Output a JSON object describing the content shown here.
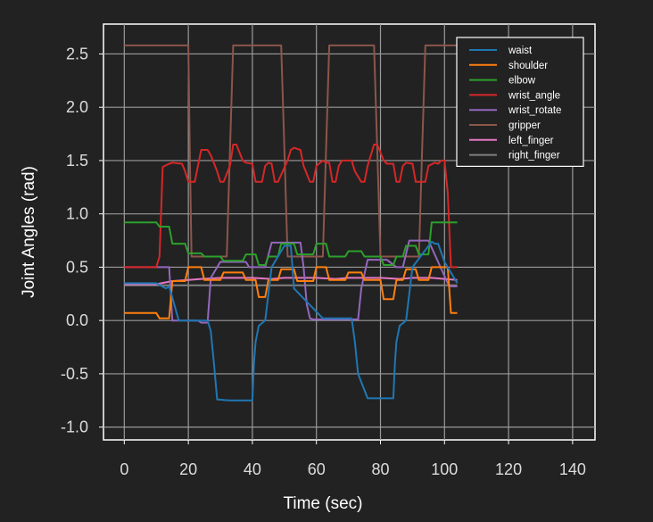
{
  "chart_data": {
    "type": "line",
    "title": "",
    "xlabel": "Time (sec)",
    "ylabel": "Joint Angles (rad)",
    "xlim": [
      -6.5,
      147
    ],
    "ylim": [
      -1.12,
      2.78
    ],
    "xticks": [
      0,
      20,
      40,
      60,
      80,
      100,
      120,
      140
    ],
    "yticks": [
      -1.0,
      -0.5,
      0.0,
      0.5,
      1.0,
      1.5,
      2.0,
      2.5
    ],
    "xtick_labels": [
      "0",
      "20",
      "40",
      "60",
      "80",
      "100",
      "120",
      "140"
    ],
    "ytick_labels": [
      "-1.0",
      "-0.5",
      "0.0",
      "0.5",
      "1.0",
      "1.5",
      "2.0",
      "2.5"
    ],
    "grid": true,
    "legend_position": "top-right",
    "series": [
      {
        "name": "waist",
        "color": "#1f77b4",
        "x": [
          0,
          10,
          13,
          14,
          17,
          26,
          27,
          28,
          29,
          33,
          40,
          40.5,
          41,
          42,
          44,
          46,
          50,
          51,
          52,
          53,
          62,
          63,
          64,
          66,
          71,
          72,
          73,
          76,
          84,
          84.5,
          85,
          86,
          88,
          90,
          96,
          97,
          98,
          100,
          104
        ],
        "y": [
          0.35,
          0.35,
          0.3,
          0.32,
          0.0,
          0.0,
          -0.1,
          -0.4,
          -0.74,
          -0.75,
          -0.75,
          -0.4,
          -0.2,
          -0.05,
          0.0,
          0.5,
          0.7,
          0.7,
          0.7,
          0.3,
          0.02,
          0.02,
          0.02,
          0.02,
          0.02,
          -0.2,
          -0.5,
          -0.73,
          -0.73,
          -0.4,
          -0.2,
          -0.05,
          0.0,
          0.5,
          0.74,
          0.72,
          0.72,
          0.55,
          0.35
        ]
      },
      {
        "name": "shoulder",
        "color": "#ff7f0e",
        "x": [
          0,
          10,
          11,
          14,
          15,
          19,
          20,
          24,
          25,
          30,
          31,
          37,
          38,
          41,
          42,
          44,
          45,
          48,
          49,
          53,
          54,
          59,
          60,
          63,
          64,
          69,
          70,
          74,
          75,
          80,
          81,
          84,
          85,
          87,
          88,
          91,
          92,
          95,
          96,
          101,
          102,
          104
        ],
        "y": [
          0.07,
          0.07,
          0.02,
          0.02,
          0.37,
          0.37,
          0.5,
          0.5,
          0.38,
          0.38,
          0.45,
          0.45,
          0.38,
          0.38,
          0.22,
          0.22,
          0.38,
          0.38,
          0.48,
          0.48,
          0.37,
          0.37,
          0.5,
          0.5,
          0.38,
          0.38,
          0.45,
          0.45,
          0.38,
          0.38,
          0.2,
          0.2,
          0.38,
          0.38,
          0.48,
          0.48,
          0.38,
          0.38,
          0.5,
          0.5,
          0.07,
          0.07
        ]
      },
      {
        "name": "elbow",
        "color": "#2ca02c",
        "x": [
          0,
          10,
          11,
          14,
          15,
          19,
          20,
          24,
          25,
          30,
          31,
          37,
          38,
          41,
          42,
          44,
          45,
          48,
          49,
          53,
          54,
          59,
          60,
          63,
          64,
          69,
          70,
          74,
          75,
          80,
          81,
          84,
          85,
          87,
          88,
          91,
          92,
          95,
          96,
          101,
          102,
          104
        ],
        "y": [
          0.92,
          0.92,
          0.88,
          0.88,
          0.72,
          0.72,
          0.63,
          0.63,
          0.6,
          0.6,
          0.56,
          0.56,
          0.62,
          0.62,
          0.52,
          0.52,
          0.6,
          0.6,
          0.72,
          0.72,
          0.62,
          0.62,
          0.72,
          0.72,
          0.6,
          0.6,
          0.65,
          0.65,
          0.6,
          0.6,
          0.52,
          0.52,
          0.6,
          0.6,
          0.7,
          0.7,
          0.62,
          0.62,
          0.92,
          0.92,
          0.92,
          0.92
        ]
      },
      {
        "name": "wrist_angle",
        "color": "#d62728",
        "x": [
          0,
          10,
          11,
          12,
          14,
          15,
          18,
          19,
          20,
          22,
          23,
          24,
          26,
          27,
          29,
          30,
          31,
          33,
          34,
          35,
          37,
          38,
          40,
          41,
          43,
          44,
          45,
          46,
          47,
          48,
          51,
          52,
          53,
          55,
          56,
          58,
          59,
          60,
          62,
          63,
          64,
          65,
          66,
          67,
          68,
          71,
          72,
          74,
          75,
          76,
          78,
          79,
          81,
          82,
          84,
          85,
          86,
          87,
          88,
          90,
          91,
          94,
          95,
          97,
          98,
          99,
          100,
          101,
          102,
          104
        ],
        "y": [
          0.5,
          0.5,
          0.6,
          1.44,
          1.47,
          1.48,
          1.47,
          1.4,
          1.3,
          1.3,
          1.45,
          1.6,
          1.6,
          1.55,
          1.4,
          1.3,
          1.3,
          1.45,
          1.65,
          1.65,
          1.5,
          1.48,
          1.47,
          1.3,
          1.3,
          1.45,
          1.48,
          1.47,
          1.3,
          1.3,
          1.5,
          1.6,
          1.62,
          1.6,
          1.45,
          1.3,
          1.3,
          1.45,
          1.5,
          1.48,
          1.48,
          1.3,
          1.3,
          1.45,
          1.5,
          1.5,
          1.4,
          1.3,
          1.3,
          1.45,
          1.65,
          1.65,
          1.5,
          1.47,
          1.47,
          1.3,
          1.3,
          1.45,
          1.48,
          1.47,
          1.3,
          1.3,
          1.45,
          1.48,
          1.47,
          1.5,
          1.5,
          1.2,
          0.5,
          0.5
        ]
      },
      {
        "name": "wrist_rotate",
        "color": "#9467bd",
        "x": [
          0,
          10,
          13,
          14,
          15,
          23,
          24,
          26,
          27,
          30,
          38,
          39,
          44,
          46,
          49,
          55,
          56,
          57,
          58,
          59,
          63,
          70,
          73,
          74,
          76,
          82,
          85,
          87,
          89,
          95,
          101,
          102,
          104
        ],
        "y": [
          0.5,
          0.5,
          0.5,
          0.5,
          0.0,
          0.0,
          -0.02,
          -0.02,
          0.4,
          0.55,
          0.55,
          0.5,
          0.5,
          0.73,
          0.73,
          0.73,
          0.5,
          0.15,
          0.02,
          0.01,
          0.01,
          0.01,
          0.01,
          0.3,
          0.57,
          0.57,
          0.5,
          0.5,
          0.75,
          0.75,
          0.35,
          0.32,
          0.32
        ]
      },
      {
        "name": "gripper",
        "color": "#8c564b",
        "x": [
          0,
          20,
          20.5,
          21,
          32,
          33,
          34,
          49,
          50,
          51,
          62,
          63,
          64,
          78,
          79,
          80,
          92,
          93,
          94,
          104
        ],
        "y": [
          2.58,
          2.58,
          1.5,
          0.6,
          0.6,
          1.6,
          2.58,
          2.58,
          1.6,
          0.6,
          0.6,
          1.6,
          2.58,
          2.58,
          1.6,
          0.6,
          0.6,
          1.6,
          2.58,
          2.58
        ]
      },
      {
        "name": "left_finger",
        "color": "#e377c2",
        "x": [
          0,
          10,
          15,
          20,
          24,
          30,
          36,
          40,
          46,
          50,
          56,
          60,
          66,
          70,
          76,
          80,
          86,
          90,
          96,
          100,
          104
        ],
        "y": [
          0.34,
          0.34,
          0.37,
          0.38,
          0.39,
          0.4,
          0.4,
          0.4,
          0.39,
          0.4,
          0.4,
          0.4,
          0.39,
          0.4,
          0.4,
          0.4,
          0.39,
          0.4,
          0.4,
          0.39,
          0.38
        ]
      },
      {
        "name": "right_finger",
        "color": "#7f7f7f",
        "x": [
          0,
          104
        ],
        "y": [
          0.33,
          0.33
        ]
      }
    ]
  }
}
